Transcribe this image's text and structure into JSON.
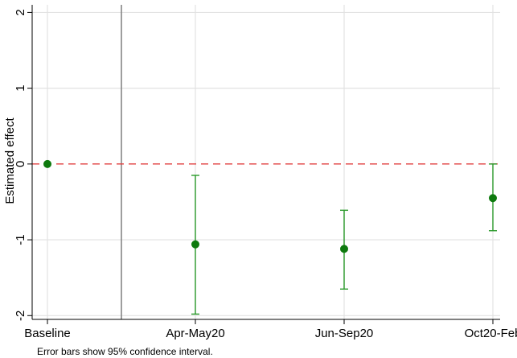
{
  "chart_data": {
    "type": "scatter",
    "ylabel": "Estimated effect",
    "xlabel": "",
    "categories": [
      "Baseline",
      "Apr-May20",
      "Jun-Sep20",
      "Oct20-Feb"
    ],
    "estimates": [
      0,
      -1.06,
      -1.12,
      -0.45
    ],
    "ci_low": [
      0,
      -1.98,
      -1.65,
      -0.88
    ],
    "ci_high": [
      0,
      -0.15,
      -0.61,
      0.0
    ],
    "yticks": [
      -2,
      -1,
      0,
      1,
      2
    ],
    "ytick_labels": [
      "-2",
      "-1",
      "0",
      "1",
      "2"
    ],
    "ylim": [
      -2.05,
      2.1
    ],
    "reference_line": {
      "y": 0,
      "style": "dashed",
      "color": "#e03c3c"
    },
    "event_line": {
      "between": [
        "Baseline",
        "Apr-May20"
      ],
      "color": "#7f7f7f"
    },
    "grid": true,
    "colors": {
      "points": "#0e7a0e",
      "ci": "#2a9a2a",
      "grid": "#e2e2e2"
    },
    "note": "Error bars show 95% confidence interval."
  }
}
